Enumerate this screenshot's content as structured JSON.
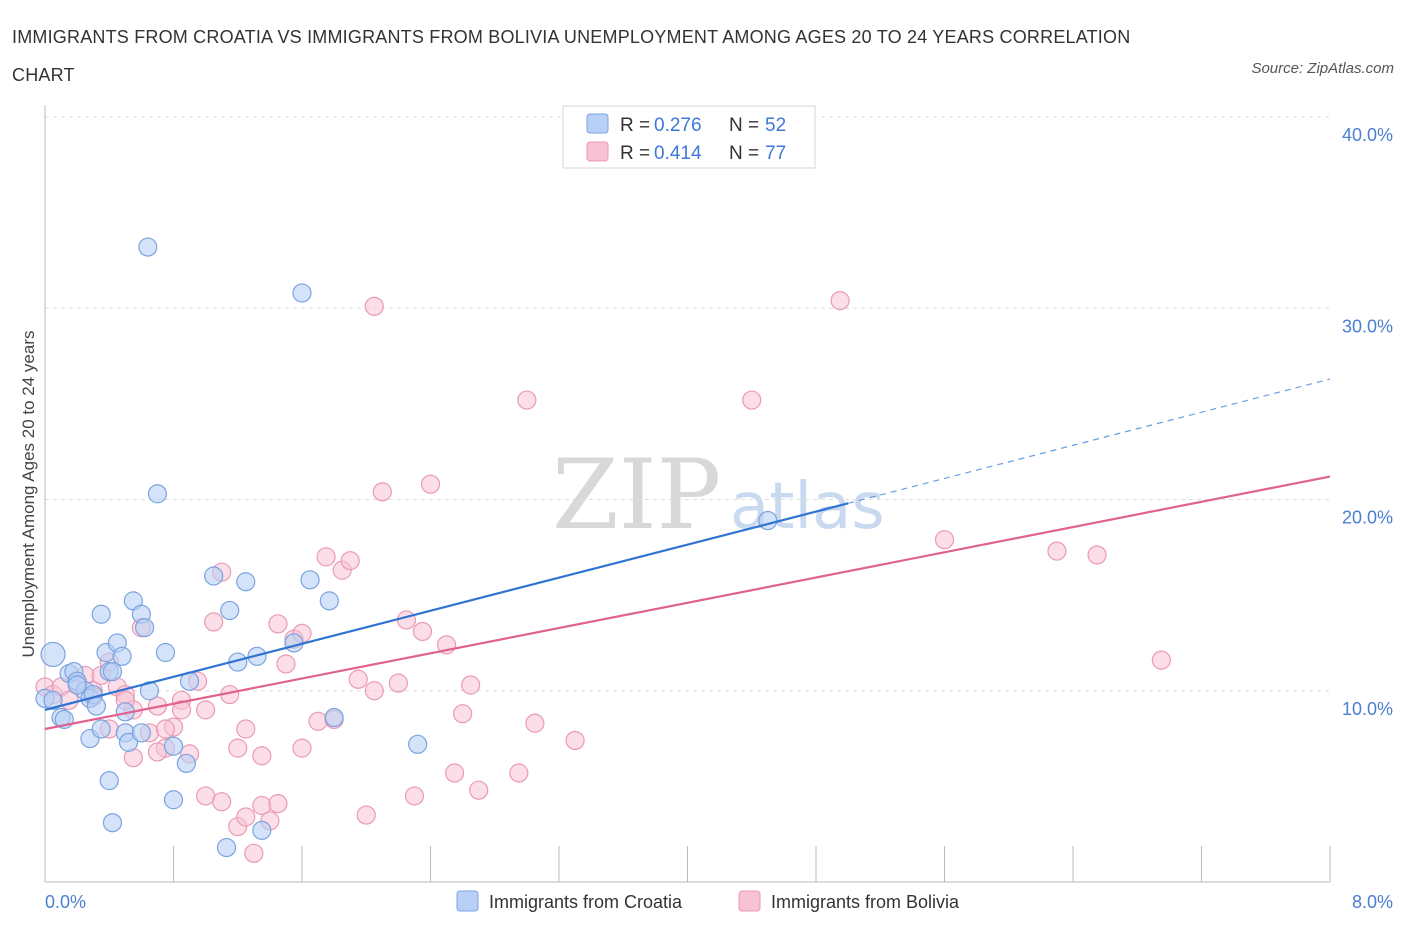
{
  "header": {
    "title": "IMMIGRANTS FROM CROATIA VS IMMIGRANTS FROM BOLIVIA UNEMPLOYMENT AMONG AGES 20 TO 24 YEARS CORRELATION CHART",
    "source": "Source: ZipAtlas.com"
  },
  "legend": {
    "rows": [
      {
        "r_label": "R = ",
        "r_value": "0.276",
        "n_label": "N = ",
        "n_value": "52"
      },
      {
        "r_label": "R = ",
        "r_value": "0.414",
        "n_label": "N = ",
        "n_value": "77"
      }
    ]
  },
  "bottom_legend": {
    "items": [
      "Immigrants from Croatia",
      "Immigrants from Bolivia"
    ]
  },
  "watermark": {
    "zip": "ZIP",
    "atlas": "atlas"
  },
  "colors": {
    "croatia_fill": "#b8d0f5",
    "croatia_stroke": "#7aa3e0",
    "croatia_line": "#2f74d0",
    "bolivia_fill": "#f7c3d4",
    "bolivia_stroke": "#ea9ab5",
    "bolivia_line": "#e0628e",
    "tick_text": "#4a7fd1",
    "grid": "#dddddd"
  },
  "chart_data": {
    "type": "scatter",
    "title": "IMMIGRANTS FROM CROATIA VS IMMIGRANTS FROM BOLIVIA UNEMPLOYMENT AMONG AGES 20 TO 24 YEARS CORRELATION CHART",
    "xlabel": "",
    "ylabel": "Unemployment Among Ages 20 to 24 years",
    "xlim": [
      0,
      8
    ],
    "ylim": [
      0,
      40
    ],
    "x_tick_labels": [
      "0.0%",
      "8.0%"
    ],
    "y_ticks": [
      10,
      20,
      30,
      40
    ],
    "y_tick_labels": [
      "10.0%",
      "20.0%",
      "30.0%",
      "40.0%"
    ],
    "grid": true,
    "legend_position": "top-center",
    "series": [
      {
        "name": "Immigrants from Croatia",
        "R": 0.276,
        "N": 52,
        "trend": {
          "x0": 0,
          "y0": 9.0,
          "x1": 5.0,
          "y1": 19.8,
          "dashed_to_x": 8.0,
          "dashed_to_y": 26.3
        },
        "points": [
          [
            0.0,
            9.6
          ],
          [
            0.05,
            11.9
          ],
          [
            0.05,
            9.5
          ],
          [
            0.1,
            8.6
          ],
          [
            0.12,
            8.5
          ],
          [
            0.15,
            10.9
          ],
          [
            0.18,
            11.0
          ],
          [
            0.2,
            10.5
          ],
          [
            0.25,
            10.0
          ],
          [
            0.28,
            9.6
          ],
          [
            0.3,
            9.8
          ],
          [
            0.32,
            9.2
          ],
          [
            0.35,
            14.0
          ],
          [
            0.38,
            12.0
          ],
          [
            0.4,
            11.0
          ],
          [
            0.42,
            11.0
          ],
          [
            0.45,
            12.5
          ],
          [
            0.48,
            11.8
          ],
          [
            0.5,
            8.9
          ],
          [
            0.55,
            14.7
          ],
          [
            0.6,
            14.0
          ],
          [
            0.62,
            13.3
          ],
          [
            0.65,
            10.0
          ],
          [
            0.7,
            20.3
          ],
          [
            0.75,
            12.0
          ],
          [
            0.8,
            7.1
          ],
          [
            0.88,
            6.2
          ],
          [
            1.05,
            16.0
          ],
          [
            1.15,
            14.2
          ],
          [
            1.2,
            11.5
          ],
          [
            1.25,
            15.7
          ],
          [
            1.32,
            11.8
          ],
          [
            1.55,
            12.5
          ],
          [
            1.65,
            15.8
          ],
          [
            1.77,
            14.7
          ],
          [
            0.28,
            7.5
          ],
          [
            0.35,
            8.0
          ],
          [
            0.4,
            5.3
          ],
          [
            0.42,
            3.1
          ],
          [
            0.5,
            7.8
          ],
          [
            0.52,
            7.3
          ],
          [
            0.6,
            7.8
          ],
          [
            0.8,
            4.3
          ],
          [
            1.13,
            1.8
          ],
          [
            1.35,
            2.7
          ],
          [
            1.8,
            8.6
          ],
          [
            2.32,
            7.2
          ],
          [
            0.64,
            33.2
          ],
          [
            1.6,
            30.8
          ],
          [
            4.5,
            18.9
          ],
          [
            0.2,
            10.3
          ],
          [
            0.9,
            10.5
          ]
        ]
      },
      {
        "name": "Immigrants from Bolivia",
        "R": 0.414,
        "N": 77,
        "trend": {
          "x0": 0,
          "y0": 8.0,
          "x1": 8.0,
          "y1": 21.2
        },
        "points": [
          [
            0.0,
            10.2
          ],
          [
            0.05,
            9.8
          ],
          [
            0.1,
            10.2
          ],
          [
            0.15,
            9.5
          ],
          [
            0.2,
            10.4
          ],
          [
            0.25,
            10.8
          ],
          [
            0.3,
            10.0
          ],
          [
            0.35,
            10.8
          ],
          [
            0.4,
            11.5
          ],
          [
            0.45,
            10.2
          ],
          [
            0.5,
            9.8
          ],
          [
            0.55,
            9.0
          ],
          [
            0.6,
            13.3
          ],
          [
            0.65,
            7.8
          ],
          [
            0.7,
            9.2
          ],
          [
            0.75,
            7.0
          ],
          [
            0.8,
            8.1
          ],
          [
            0.85,
            9.5
          ],
          [
            0.9,
            6.7
          ],
          [
            0.95,
            10.5
          ],
          [
            1.0,
            9.0
          ],
          [
            1.05,
            13.6
          ],
          [
            1.1,
            16.2
          ],
          [
            1.15,
            9.8
          ],
          [
            1.2,
            7.0
          ],
          [
            1.25,
            8.0
          ],
          [
            1.35,
            6.6
          ],
          [
            1.45,
            13.5
          ],
          [
            1.5,
            11.4
          ],
          [
            1.55,
            12.7
          ],
          [
            1.6,
            13.0
          ],
          [
            1.7,
            8.4
          ],
          [
            1.75,
            17.0
          ],
          [
            1.85,
            16.3
          ],
          [
            1.9,
            16.8
          ],
          [
            1.95,
            10.6
          ],
          [
            2.05,
            10.0
          ],
          [
            2.1,
            20.4
          ],
          [
            2.2,
            10.4
          ],
          [
            2.25,
            13.7
          ],
          [
            2.35,
            13.1
          ],
          [
            2.4,
            20.8
          ],
          [
            2.5,
            12.4
          ],
          [
            2.6,
            8.8
          ],
          [
            2.65,
            10.3
          ],
          [
            0.3,
            9.7
          ],
          [
            0.4,
            8.0
          ],
          [
            0.5,
            9.5
          ],
          [
            0.55,
            6.5
          ],
          [
            0.7,
            6.8
          ],
          [
            0.75,
            8.0
          ],
          [
            0.85,
            9.0
          ],
          [
            1.0,
            4.5
          ],
          [
            1.1,
            4.2
          ],
          [
            1.2,
            2.9
          ],
          [
            1.25,
            3.4
          ],
          [
            1.3,
            1.5
          ],
          [
            1.35,
            4.0
          ],
          [
            1.4,
            3.2
          ],
          [
            1.45,
            4.1
          ],
          [
            1.6,
            7.0
          ],
          [
            1.8,
            8.5
          ],
          [
            2.0,
            3.5
          ],
          [
            2.3,
            4.5
          ],
          [
            2.55,
            5.7
          ],
          [
            2.7,
            4.8
          ],
          [
            2.95,
            5.7
          ],
          [
            3.05,
            8.3
          ],
          [
            3.3,
            7.4
          ],
          [
            3.0,
            25.2
          ],
          [
            4.4,
            25.2
          ],
          [
            4.95,
            30.4
          ],
          [
            2.05,
            30.1
          ],
          [
            5.6,
            17.9
          ],
          [
            6.3,
            17.3
          ],
          [
            6.55,
            17.1
          ],
          [
            6.95,
            11.6
          ]
        ]
      }
    ]
  }
}
